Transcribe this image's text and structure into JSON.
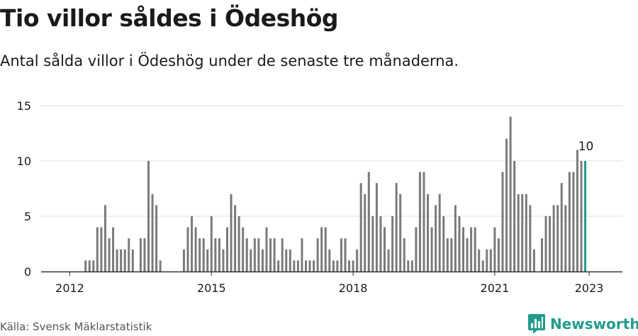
{
  "header": {
    "title": "Tio villor såldes i Ödeshög",
    "subtitle": "Antal sålda villor i Ödeshög under de senaste tre månaderna."
  },
  "footer": {
    "source": "Källa: Svensk Mäklarstatistik",
    "brand": "Newsworthy",
    "brand_icon": "newsworthy-logo-icon"
  },
  "colors": {
    "bar": "#7a7a7a",
    "highlight": "#229b8d",
    "grid": "#dddddd",
    "axis": "#333333",
    "text": "#1a1a1a"
  },
  "chart_data": {
    "type": "bar",
    "title": "Tio villor såldes i Ödeshög",
    "subtitle": "Antal sålda villor i Ödeshög under de senaste tre månaderna.",
    "xlabel": "",
    "ylabel": "",
    "ylim": [
      0,
      15
    ],
    "y_ticks": [
      0,
      5,
      10,
      15
    ],
    "x_ticks": [
      "2012",
      "2015",
      "2018",
      "2021",
      "2023"
    ],
    "grid": true,
    "start_month": "2011-01",
    "highlight_label": "10",
    "values": [
      0,
      0,
      0,
      0,
      0,
      0,
      0,
      0,
      0,
      0,
      0,
      0,
      0,
      0,
      0,
      0,
      1,
      1,
      1,
      4,
      4,
      6,
      3,
      4,
      2,
      2,
      2,
      3,
      2,
      0,
      3,
      3,
      10,
      7,
      6,
      1,
      0,
      0,
      0,
      0,
      0,
      2,
      4,
      5,
      4,
      3,
      3,
      2,
      5,
      3,
      3,
      2,
      4,
      7,
      6,
      5,
      4,
      3,
      2,
      3,
      3,
      2,
      4,
      3,
      3,
      1,
      3,
      2,
      2,
      1,
      1,
      3,
      1,
      1,
      1,
      3,
      4,
      4,
      2,
      1,
      1,
      3,
      3,
      1,
      1,
      2,
      8,
      7,
      9,
      5,
      8,
      5,
      4,
      2,
      5,
      8,
      7,
      3,
      1,
      1,
      4,
      9,
      9,
      7,
      4,
      6,
      7,
      5,
      3,
      3,
      6,
      5,
      4,
      3,
      4,
      4,
      2,
      1,
      2,
      2,
      4,
      3,
      9,
      12,
      14,
      10,
      7,
      7,
      7,
      6,
      2,
      0,
      3,
      5,
      5,
      6,
      6,
      8,
      6,
      9,
      9,
      11,
      10,
      10
    ]
  }
}
